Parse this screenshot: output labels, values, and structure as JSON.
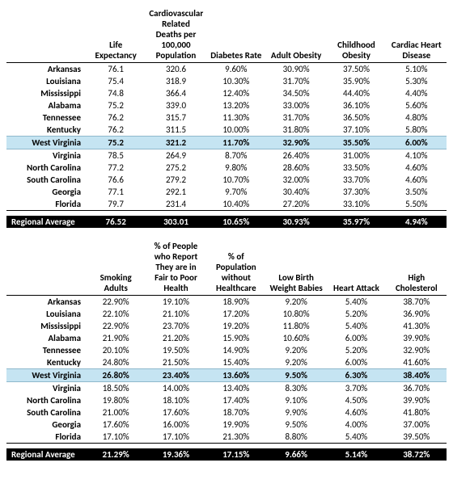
{
  "table1": {
    "columns": [
      "",
      "Life Expectancy",
      "Cardiovascular Related Deaths per 100,000 Population",
      "Diabetes Rate",
      "Adult Obesity",
      "Childhood Obesity",
      "Cardiac Heart Disease"
    ],
    "rows": [
      {
        "label": "Arkansas",
        "v": [
          "76.1",
          "320.6",
          "9.60%",
          "30.90%",
          "37.50%",
          "5.10%"
        ]
      },
      {
        "label": "Louisiana",
        "v": [
          "75.4",
          "318.9",
          "10.30%",
          "31.70%",
          "35.90%",
          "5.30%"
        ]
      },
      {
        "label": "Mississippi",
        "v": [
          "74.8",
          "366.4",
          "12.40%",
          "34.50%",
          "44.40%",
          "4.40%"
        ]
      },
      {
        "label": "Alabama",
        "v": [
          "75.2",
          "339.0",
          "13.20%",
          "33.00%",
          "36.10%",
          "5.60%"
        ]
      },
      {
        "label": "Tennessee",
        "v": [
          "76.2",
          "315.7",
          "11.30%",
          "31.70%",
          "36.50%",
          "4.80%"
        ]
      },
      {
        "label": "Kentucky",
        "v": [
          "76.2",
          "311.5",
          "10.00%",
          "31.80%",
          "37.10%",
          "5.80%"
        ]
      },
      {
        "label": "West Virginia",
        "v": [
          "75.2",
          "321.2",
          "11.70%",
          "32.90%",
          "35.50%",
          "6.00%"
        ],
        "highlight": true
      },
      {
        "label": "Virginia",
        "v": [
          "78.5",
          "264.9",
          "8.70%",
          "26.40%",
          "31.00%",
          "4.10%"
        ]
      },
      {
        "label": "North Carolina",
        "v": [
          "77.2",
          "275.2",
          "9.80%",
          "28.60%",
          "33.50%",
          "4.60%"
        ]
      },
      {
        "label": "South Carolina",
        "v": [
          "76.6",
          "279.2",
          "10.70%",
          "32.00%",
          "33.70%",
          "4.60%"
        ]
      },
      {
        "label": "Georgia",
        "v": [
          "77.1",
          "292.1",
          "9.70%",
          "30.40%",
          "37.30%",
          "3.50%"
        ]
      },
      {
        "label": "Florida",
        "v": [
          "79.7",
          "231.4",
          "10.40%",
          "27.20%",
          "33.10%",
          "5.50%"
        ]
      }
    ],
    "avg": {
      "label": "Regional Average",
      "v": [
        "76.52",
        "303.01",
        "10.65%",
        "30.93%",
        "35.97%",
        "4.94%"
      ]
    }
  },
  "table2": {
    "columns": [
      "",
      "Smoking Adults",
      "% of People who Report They are in Fair to Poor Health",
      "% of Population without Healthcare",
      "Low Birth Weight Babies",
      "Heart Attack",
      "High Cholesterol"
    ],
    "rows": [
      {
        "label": "Arkansas",
        "v": [
          "22.90%",
          "19.10%",
          "18.90%",
          "9.20%",
          "5.40%",
          "38.70%"
        ]
      },
      {
        "label": "Louisiana",
        "v": [
          "22.10%",
          "21.10%",
          "17.20%",
          "10.80%",
          "5.20%",
          "36.90%"
        ]
      },
      {
        "label": "Mississippi",
        "v": [
          "22.90%",
          "23.70%",
          "19.20%",
          "11.80%",
          "5.40%",
          "41.30%"
        ]
      },
      {
        "label": "Alabama",
        "v": [
          "21.90%",
          "21.20%",
          "15.90%",
          "10.60%",
          "6.00%",
          "39.90%"
        ]
      },
      {
        "label": "Tennessee",
        "v": [
          "20.10%",
          "19.50%",
          "14.90%",
          "9.20%",
          "5.20%",
          "32.90%"
        ]
      },
      {
        "label": "Kentucky",
        "v": [
          "24.80%",
          "21.50%",
          "15.40%",
          "9.20%",
          "6.00%",
          "41.60%"
        ]
      },
      {
        "label": "West Virginia",
        "v": [
          "26.80%",
          "23.40%",
          "13.60%",
          "9.50%",
          "6.30%",
          "38.40%"
        ],
        "highlight": true
      },
      {
        "label": "Virginia",
        "v": [
          "18.50%",
          "14.00%",
          "13.40%",
          "8.30%",
          "3.70%",
          "36.70%"
        ]
      },
      {
        "label": "North Carolina",
        "v": [
          "19.80%",
          "18.10%",
          "17.40%",
          "9.10%",
          "4.50%",
          "39.90%"
        ]
      },
      {
        "label": "South Carolina",
        "v": [
          "21.00%",
          "17.60%",
          "18.70%",
          "9.90%",
          "4.60%",
          "41.80%"
        ]
      },
      {
        "label": "Georgia",
        "v": [
          "17.60%",
          "16.00%",
          "19.90%",
          "9.50%",
          "4.00%",
          "37.00%"
        ]
      },
      {
        "label": "Florida",
        "v": [
          "17.10%",
          "17.10%",
          "21.30%",
          "8.80%",
          "5.40%",
          "39.50%"
        ]
      }
    ],
    "avg": {
      "label": "Regional Average",
      "v": [
        "21.29%",
        "19.36%",
        "17.15%",
        "9.66%",
        "5.14%",
        "38.72%"
      ]
    }
  }
}
